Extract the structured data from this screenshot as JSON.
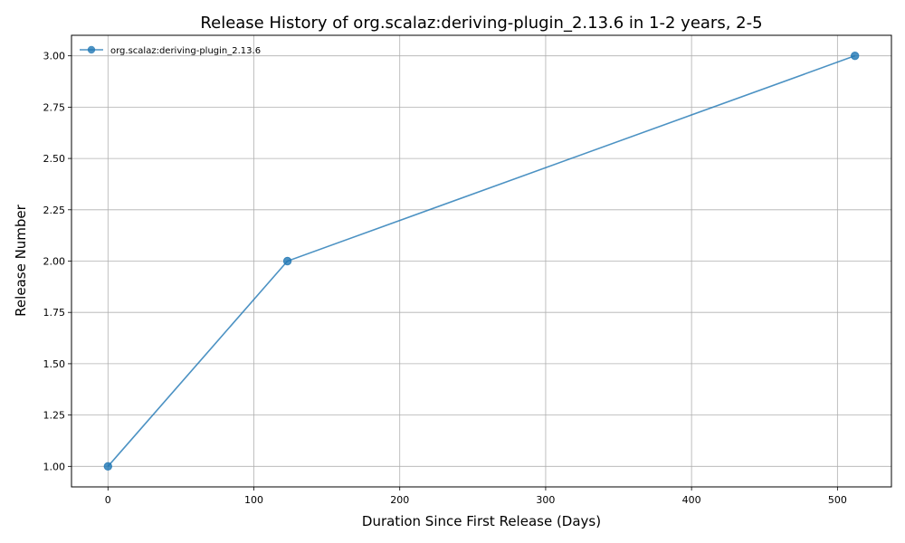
{
  "chart_data": {
    "type": "line",
    "title": "Release History of org.scalaz:deriving-plugin_2.13.6 in 1-2 years, 2-5",
    "xlabel": "Duration Since First Release (Days)",
    "ylabel": "Release Number",
    "xlim": [
      -25,
      537
    ],
    "ylim": [
      0.9,
      3.1
    ],
    "xticks": [
      0,
      100,
      200,
      300,
      400,
      500
    ],
    "xtick_labels": [
      "0",
      "100",
      "200",
      "300",
      "400",
      "500"
    ],
    "yticks": [
      1.0,
      1.25,
      1.5,
      1.75,
      2.0,
      2.25,
      2.5,
      2.75,
      3.0
    ],
    "ytick_labels": [
      "1.00",
      "1.25",
      "1.50",
      "1.75",
      "2.00",
      "2.25",
      "2.50",
      "2.75",
      "3.00"
    ],
    "grid": true,
    "legend_position": "top-left",
    "series": [
      {
        "name": "org.scalaz:deriving-plugin_2.13.6",
        "color": "#1f77b4",
        "x": [
          0,
          123,
          512
        ],
        "y": [
          1,
          2,
          3
        ]
      }
    ]
  }
}
